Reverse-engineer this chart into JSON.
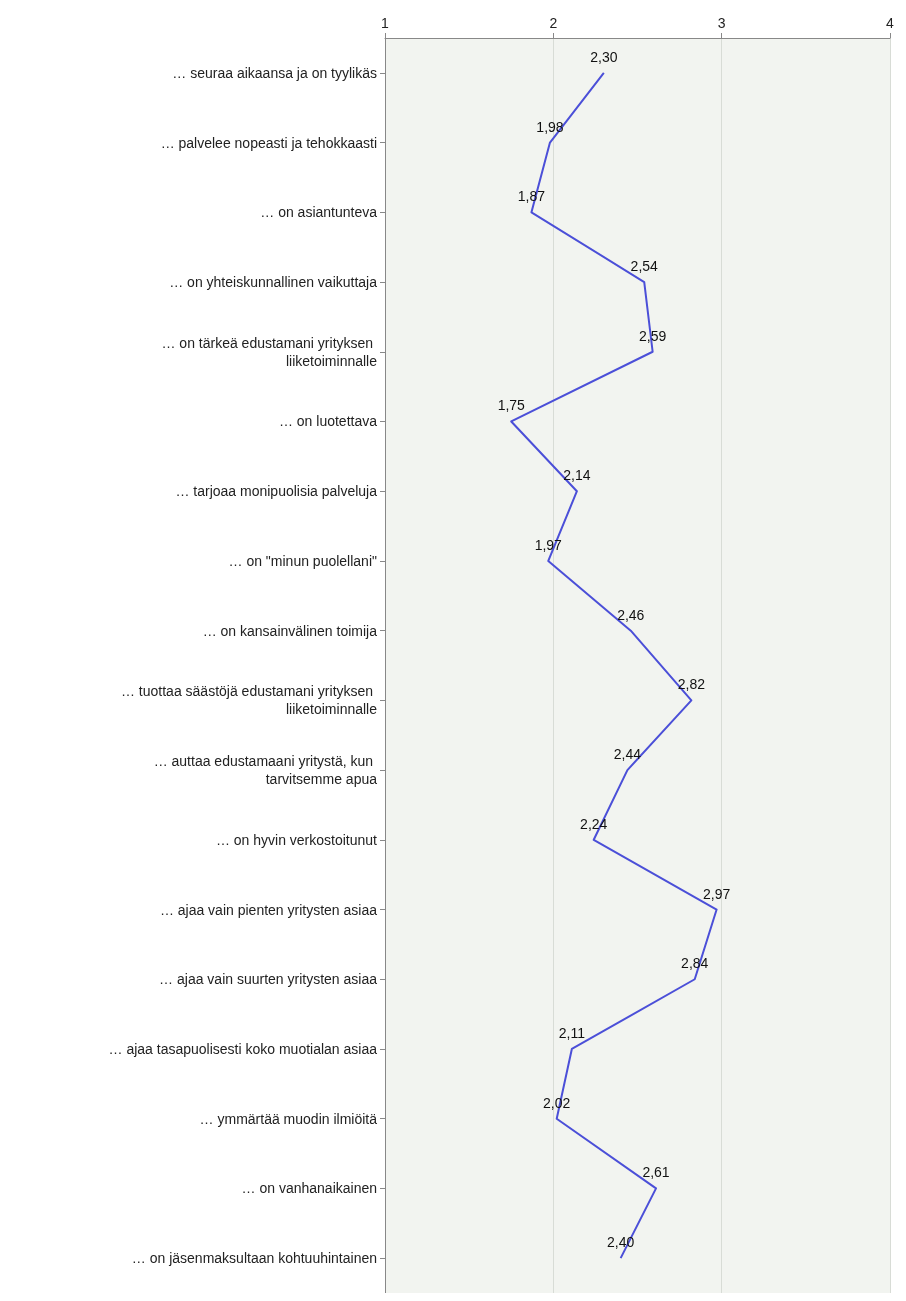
{
  "chart_data": {
    "type": "line",
    "orientation": "horizontal",
    "categories": [
      "… seuraa aikaansa ja on tyylikäs",
      "… palvelee nopeasti ja tehokkaasti",
      "… on asiantunteva",
      "… on yhteiskunnallinen vaikuttaja",
      "… on tärkeä edustamani yrityksen liiketoiminnalle",
      "… on luotettava",
      "… tarjoaa monipuolisia palveluja",
      "… on \"minun puolellani\"",
      "… on kansainvälinen toimija",
      "… tuottaa säästöjä edustamani yrityksen liiketoiminnalle",
      "… auttaa edustamaani yritystä, kun tarvitsemme apua",
      "… on hyvin verkostoitunut",
      "… ajaa vain pienten yritysten asiaa",
      "… ajaa vain suurten yritysten asiaa",
      "… ajaa tasapuolisesti koko muotialan asiaa",
      "… ymmärtää muodin ilmiöitä",
      "… on vanhanaikainen",
      "… on jäsenmaksultaan kohtuuhintainen"
    ],
    "series": [
      {
        "color": "#4b4fd8",
        "values": [
          2.3,
          1.98,
          1.87,
          2.54,
          2.59,
          1.75,
          2.14,
          1.97,
          2.46,
          2.82,
          2.44,
          2.24,
          2.97,
          2.84,
          2.11,
          2.02,
          2.61,
          2.4
        ],
        "value_labels": [
          "2,30",
          "1,98",
          "1,87",
          "2,54",
          "2,59",
          "1,75",
          "2,14",
          "1,97",
          "2,46",
          "2,82",
          "2,44",
          "2,24",
          "2,97",
          "2,84",
          "2,11",
          "2,02",
          "2,61",
          "2,40"
        ]
      }
    ],
    "xlim": [
      1,
      4
    ],
    "xticks": [
      1,
      2,
      3,
      4
    ],
    "grid": "x",
    "marker": "none",
    "line_style": "solid"
  }
}
